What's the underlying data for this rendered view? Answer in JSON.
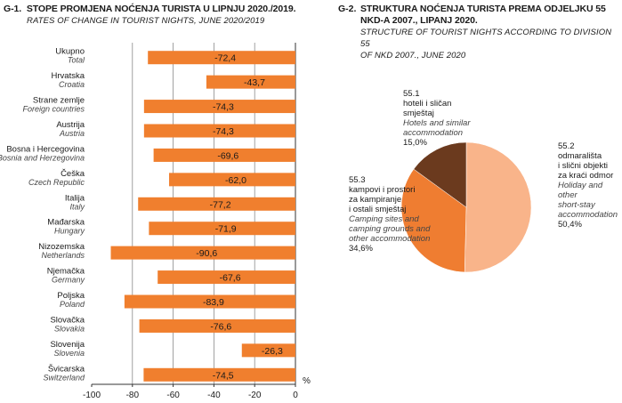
{
  "g1": {
    "number": "G-1.",
    "title": "STOPE PROMJENA NOĆENJA TURISTA U LIPNJU 2020./2019.",
    "subtitle": "RATES OF CHANGE IN TOURIST NIGHTS, JUNE 2020/2019"
  },
  "g2": {
    "number": "G-2.",
    "title_line1": "STRUKTURA NOĆENJA TURISTA PREMA ODJELJKU 55",
    "title_line2": "NKD-A 2007., LIPANJ 2020.",
    "subtitle_line1": "STRUCTURE OF TOURIST NIGHTS ACCORDING TO DIVISION 55",
    "subtitle_line2": "OF NKD 2007., JUNE 2020"
  },
  "chart_data": [
    {
      "type": "bar",
      "orientation": "horizontal",
      "categories": [
        {
          "hr": "Ukupno",
          "en": "Total"
        },
        {
          "hr": "Hrvatska",
          "en": "Croatia"
        },
        {
          "hr": "Strane zemlje",
          "en": "Foreign countries"
        },
        {
          "hr": "Austrija",
          "en": "Austria"
        },
        {
          "hr": "Bosna i Hercegovina",
          "en": "Bosnia and Herzegovina"
        },
        {
          "hr": "Češka",
          "en": "Czech Republic"
        },
        {
          "hr": "Italija",
          "en": "Italy"
        },
        {
          "hr": "Mađarska",
          "en": "Hungary"
        },
        {
          "hr": "Nizozemska",
          "en": "Netherlands"
        },
        {
          "hr": "Njemačka",
          "en": "Germany"
        },
        {
          "hr": "Poljska",
          "en": "Poland"
        },
        {
          "hr": "Slovačka",
          "en": "Slovakia"
        },
        {
          "hr": "Slovenija",
          "en": "Slovenia"
        },
        {
          "hr": "Švicarska",
          "en": "Switzerland"
        }
      ],
      "values": [
        -72.4,
        -43.7,
        -74.3,
        -74.3,
        -69.6,
        -62.0,
        -77.2,
        -71.9,
        -90.6,
        -67.6,
        -83.9,
        -76.6,
        -26.3,
        -74.5
      ],
      "value_labels": [
        "-72,4",
        "-43,7",
        "-74,3",
        "-74,3",
        "-69,6",
        "-62,0",
        "-77,2",
        "-71,9",
        "-90,6",
        "-67,6",
        "-83,9",
        "-76,6",
        "-26,3",
        "-74,5"
      ],
      "xlim": [
        -100,
        0
      ],
      "xticks": [
        -100,
        -80,
        -60,
        -40,
        -20,
        0
      ],
      "xtick_labels": [
        "-100",
        "-80",
        "-60",
        "-40",
        "-20",
        "0"
      ],
      "unit": "%",
      "grid": "vertical",
      "color": "#f07f2e"
    },
    {
      "type": "pie",
      "slices": [
        {
          "code": "55.2",
          "label": [
            "odmarališta",
            "i slični objekti",
            "za kraći odmor"
          ],
          "label_en": [
            "Holiday and other",
            "short-stay",
            "accommodation"
          ],
          "value": 50.4,
          "value_label": "50,4%",
          "color": "#f9b48a"
        },
        {
          "code": "55.3",
          "label": [
            "kampovi i prostori",
            "za kampiranje",
            "i ostali smještaj"
          ],
          "label_en": [
            "Camping sites and",
            "camping grounds and",
            "other accommodation"
          ],
          "value": 34.6,
          "value_label": "34,6%",
          "color": "#ef7d31"
        },
        {
          "code": "55.1",
          "label": [
            "hoteli i sličan",
            "smještaj"
          ],
          "label_en": [
            "Hotels and similar",
            "accommodation"
          ],
          "value": 15.0,
          "value_label": "15,0%",
          "color": "#6b3a1e"
        }
      ]
    }
  ]
}
